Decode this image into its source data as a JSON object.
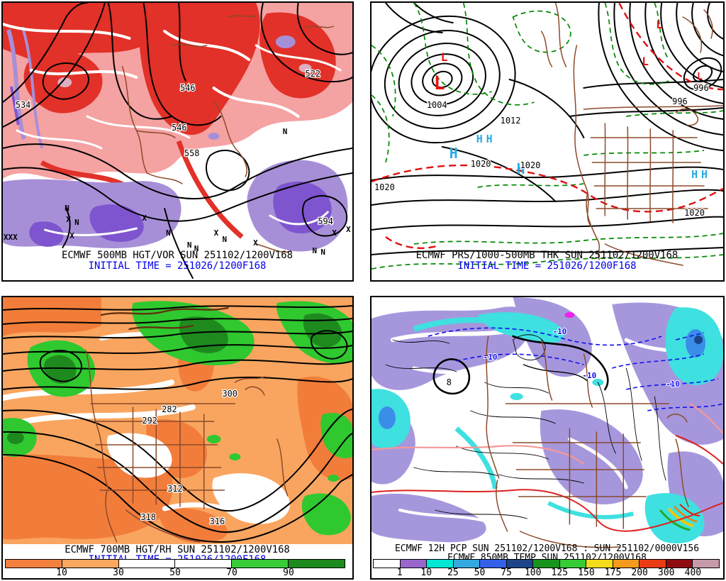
{
  "colors": {
    "caption_blue": "#0000e8",
    "vorticity_red": "#e23128",
    "vorticity_red_light": "#f5a2a2",
    "vorticity_core_pink": "#dcaec2",
    "vorticity_purple_light": "#a78fd8",
    "vorticity_purple_dark": "#7e55cf",
    "contour_black": "#000000",
    "map_border_brown": "#8b4a2a",
    "thickness_green_dash": "#008800",
    "thickness_red_dash": "#dd1111",
    "low_symbol_red": "#ee1111",
    "high_symbol_cyan": "#29abe2",
    "rh_orange": "#f9a55f",
    "rh_orange_dark": "#f27d3a",
    "rh_green": "#2fc82f",
    "rh_green_dark": "#1e8a1e",
    "pcp_lavender": "#a697dd",
    "pcp_cyan": "#3fe0e0",
    "pcp_blue": "#3a8ee8",
    "temp_blue_dash": "#1111ee",
    "temp_red_line": "#dd2222",
    "temp_pink_line": "#f49898"
  },
  "panels": {
    "hgt_vor": {
      "caption": "ECMWF 500MB HGT/VOR SUN 251102/1200V168",
      "init_time": "INITIAL TIME = 251026/1200F168",
      "height_labels": [
        "534",
        "546",
        "546",
        "558",
        "594",
        "522"
      ],
      "marker_x": "X",
      "marker_n": "N",
      "marker_xxx": "XXX"
    },
    "prs_thk": {
      "caption": "ECMWF PRS/1000-500MB THK SUN 251102/1200V168",
      "init_time": "INITIAL TIME = 251026/1200F168",
      "pressure_labels": [
        "1004",
        "1012",
        "1020",
        "1020",
        "1020",
        "1020",
        "996",
        "996"
      ],
      "low_symbol": "L",
      "high_symbol": "H"
    },
    "hgt_rh": {
      "caption": "ECMWF 700MB HGT/RH SUN 251102/1200V168",
      "init_time": "INITIAL TIME = 251026/1200F168",
      "height_labels": [
        "282",
        "292",
        "300",
        "312",
        "316",
        "318"
      ]
    },
    "pcp_temp": {
      "caption_line1": "ECMWF 12H PCP SUN 251102/1200V168 : SUN 251102/0000V156",
      "caption_line2": "ECMWF 850MB TEMP SUN 251102/1200V168",
      "temp_labels": [
        "-10",
        "-10",
        "-10",
        "-10"
      ],
      "contour_label": "8"
    }
  },
  "colorbars": {
    "rh": {
      "segments": [
        "#f48040",
        "#faa860",
        "#ffffff",
        "#ffffff",
        "#38cc38",
        "#1c8a1c"
      ],
      "labels": [
        "10",
        "30",
        "50",
        "70",
        "90"
      ]
    },
    "pcp": {
      "segments": [
        "#ffffff",
        "#9a66cc",
        "#00e8d4",
        "#34a8e0",
        "#3361ea",
        "#1d4488",
        "#17941c",
        "#35cc35",
        "#f2dc1c",
        "#f49a1c",
        "#ea3c14",
        "#8e0c10",
        "#c79aaa"
      ],
      "labels": [
        "1",
        "10",
        "25",
        "50",
        "75",
        "100",
        "125",
        "150",
        "175",
        "200",
        "300",
        "400"
      ]
    }
  }
}
